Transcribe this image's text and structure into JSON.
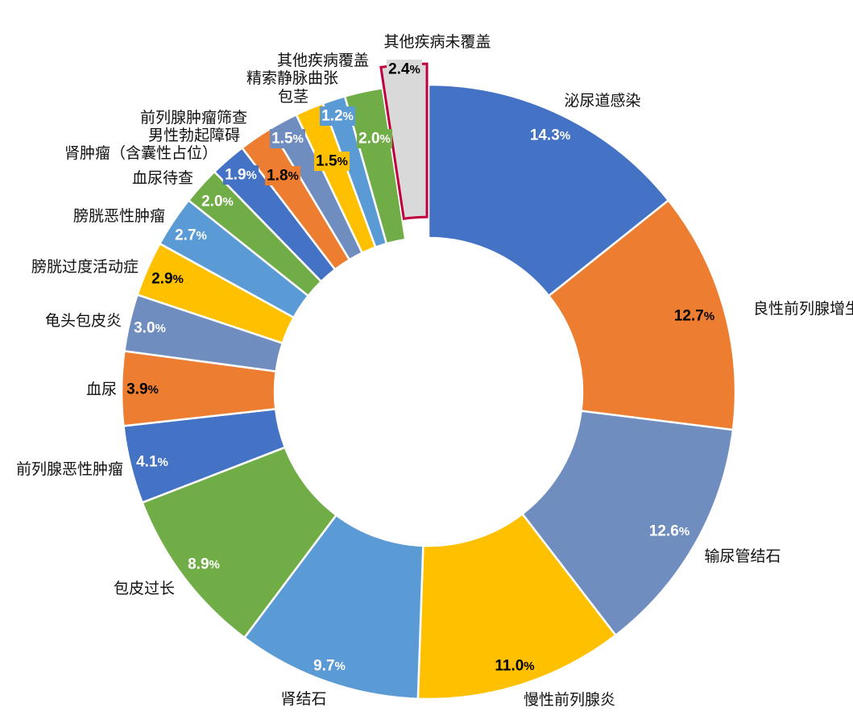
{
  "chart_data": {
    "type": "pie",
    "subtype": "donut",
    "title": "",
    "value_unit": "%",
    "slices": [
      {
        "label": "泌尿道感染",
        "value": 14.3,
        "display": "14.3",
        "color": "#4472C4"
      },
      {
        "label": "良性前列腺增生",
        "value": 12.7,
        "display": "12.7",
        "color": "#ED7D31"
      },
      {
        "label": "输尿管结石",
        "value": 12.6,
        "display": "12.6",
        "color": "#6F8EBF"
      },
      {
        "label": "慢性前列腺炎",
        "value": 11.0,
        "display": "11.0",
        "color": "#FFC000"
      },
      {
        "label": "肾结石",
        "value": 9.7,
        "display": "9.7",
        "color": "#5B9BD5"
      },
      {
        "label": "包皮过长",
        "value": 8.9,
        "display": "8.9",
        "color": "#70AD47"
      },
      {
        "label": "前列腺恶性肿瘤",
        "value": 4.1,
        "display": "4.1",
        "color": "#4472C4"
      },
      {
        "label": "血尿",
        "value": 3.9,
        "display": "3.9",
        "color": "#ED7D31"
      },
      {
        "label": "龟头包皮炎",
        "value": 3.0,
        "display": "3.0",
        "color": "#6F8EBF"
      },
      {
        "label": "膀胱过度活动症",
        "value": 2.9,
        "display": "2.9",
        "color": "#FFC000"
      },
      {
        "label": "膀胱恶性肿瘤",
        "value": 2.7,
        "display": "2.7",
        "color": "#5B9BD5"
      },
      {
        "label": "血尿待查",
        "value": 2.0,
        "display": "2.0",
        "color": "#70AD47"
      },
      {
        "label": "肾肿瘤（含囊性占位）",
        "value": 1.9,
        "display": "1.9",
        "color": "#4472C4"
      },
      {
        "label": "男性勃起障碍",
        "value": 1.8,
        "display": "1.8",
        "color": "#ED7D31"
      },
      {
        "label": "前列腺肿瘤筛查",
        "value": 1.5,
        "display": "1.5",
        "color": "#6F8EBF"
      },
      {
        "label": "包茎",
        "value": 1.5,
        "display": "1.5",
        "color": "#FFC000"
      },
      {
        "label": "精索静脉曲张",
        "value": 1.2,
        "display": "1.2",
        "color": "#5B9BD5"
      },
      {
        "label": "其他疾病覆盖",
        "value": 2.0,
        "display": "2.0",
        "color": "#70AD47"
      },
      {
        "label": "其他疾病未覆盖",
        "value": 2.4,
        "display": "2.4",
        "color": "#D9D9D9",
        "highlight": true,
        "exploded": true,
        "label_color": "#C00000",
        "border_color": "#C0003C"
      }
    ]
  }
}
